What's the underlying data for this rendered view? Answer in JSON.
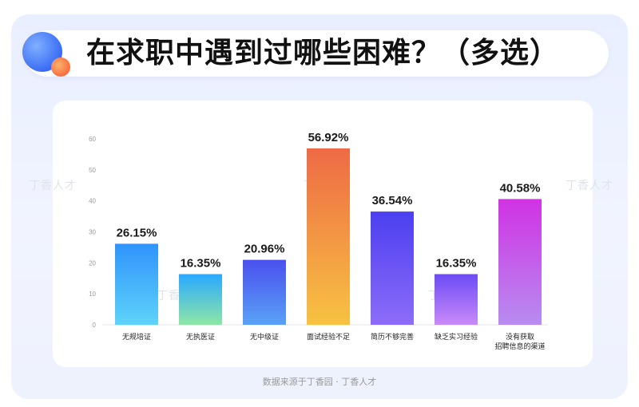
{
  "title": "在求职中遇到过哪些困难？（多选）",
  "footer": "数据来源于丁香园 · 丁香人才",
  "watermark": "丁香人才",
  "chart_data": {
    "type": "bar",
    "title": "在求职中遇到过哪些困难？（多选）",
    "ylim": [
      0,
      60
    ],
    "yticks": [
      0,
      10,
      20,
      30,
      40,
      50,
      60
    ],
    "grid": false,
    "categories": [
      [
        "无规培证"
      ],
      [
        "无执医证"
      ],
      [
        "无中级证"
      ],
      [
        "面试经验不足"
      ],
      [
        "简历不够完善"
      ],
      [
        "缺乏实习经验"
      ],
      [
        "没有获取",
        "招聘信息的渠道"
      ]
    ],
    "values": [
      26.15,
      16.35,
      20.96,
      56.92,
      36.54,
      16.35,
      40.58
    ],
    "value_labels": [
      "26.15%",
      "16.35%",
      "20.96%",
      "56.92%",
      "36.54%",
      "16.35%",
      "40.58%"
    ],
    "colors": [
      [
        "#2f93fb",
        "#5fd3fa"
      ],
      [
        "#2aa8ff",
        "#8ee6a6"
      ],
      [
        "#4a50ee",
        "#5aa2f6"
      ],
      [
        "#ee6a45",
        "#f7c242"
      ],
      [
        "#4b3ff0",
        "#8d6cf8"
      ],
      [
        "#6c4cf5",
        "#c98af8"
      ],
      [
        "#d032e3",
        "#b78cf0"
      ]
    ]
  }
}
